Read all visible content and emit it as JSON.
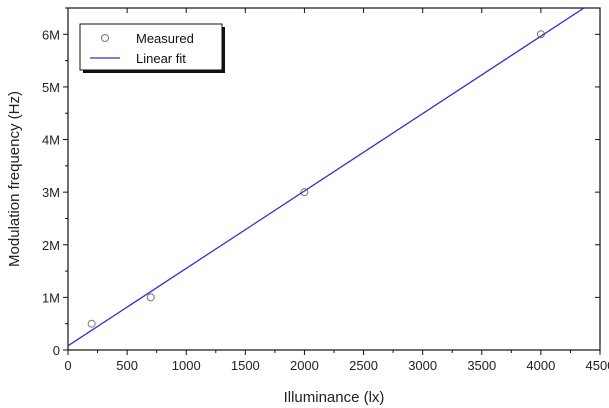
{
  "chart_data": {
    "type": "scatter",
    "xlabel": "Illuminance (lx)",
    "ylabel": "Modulation frequency (Hz)",
    "xlim": [
      0,
      4500
    ],
    "ylim": [
      0,
      6500000
    ],
    "x_ticks": [
      0,
      500,
      1000,
      1500,
      2000,
      2500,
      3000,
      3500,
      4000,
      4500
    ],
    "x_tick_labels": [
      "0",
      "500",
      "1000",
      "1500",
      "2000",
      "2500",
      "3000",
      "3500",
      "4000",
      "4500"
    ],
    "y_ticks": [
      0,
      1000000,
      2000000,
      3000000,
      4000000,
      5000000,
      6000000
    ],
    "y_tick_labels": [
      "0",
      "1M",
      "2M",
      "3M",
      "4M",
      "5M",
      "6M"
    ],
    "grid": false,
    "legend_position": "top-left",
    "series": [
      {
        "name": "Measured",
        "kind": "scatter",
        "marker": "open-circle",
        "color": "#777777",
        "points": [
          {
            "x": 200,
            "y": 500000
          },
          {
            "x": 700,
            "y": 1000000
          },
          {
            "x": 2000,
            "y": 3000000
          },
          {
            "x": 4000,
            "y": 6000000
          }
        ]
      },
      {
        "name": "Linear fit",
        "kind": "line",
        "color": "#3333cc",
        "points": [
          {
            "x": 0,
            "y": 80000
          },
          {
            "x": 4500,
            "y": 6700000
          }
        ]
      }
    ]
  }
}
